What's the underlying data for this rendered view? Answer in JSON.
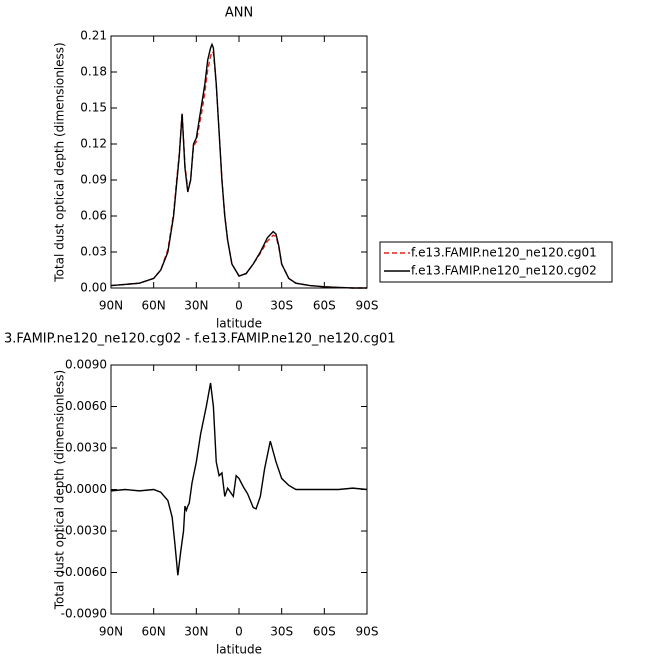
{
  "chart_data": [
    {
      "type": "line",
      "title": "ANN",
      "xlabel": "latitude",
      "ylabel": "Total dust optical depth (dimensionless)",
      "x": [
        90,
        80,
        70,
        60,
        55,
        50,
        46,
        44,
        42,
        40,
        38,
        36,
        34,
        32,
        30,
        28,
        26,
        24,
        22,
        20,
        19,
        18,
        16,
        14,
        12,
        10,
        8,
        5,
        0,
        -5,
        -10,
        -15,
        -20,
        -24,
        -26,
        -28,
        -30,
        -35,
        -40,
        -50,
        -60,
        -70,
        -80,
        -90
      ],
      "series": [
        {
          "name": "f.e13.FAMIP.ne120_ne120.cg01",
          "color": "#e0201b",
          "dashed": true,
          "values": [
            0.002,
            0.003,
            0.004,
            0.008,
            0.015,
            0.032,
            0.062,
            0.088,
            0.112,
            0.146,
            0.102,
            0.082,
            0.09,
            0.118,
            0.122,
            0.135,
            0.148,
            0.163,
            0.182,
            0.193,
            0.197,
            0.196,
            0.17,
            0.13,
            0.09,
            0.06,
            0.04,
            0.02,
            0.01,
            0.012,
            0.02,
            0.029,
            0.039,
            0.044,
            0.043,
            0.034,
            0.02,
            0.008,
            0.004,
            0.002,
            0.001,
            0.0005,
            0,
            0
          ]
        },
        {
          "name": "f.e13.FAMIP.ne120_ne120.cg02",
          "color": "#000000",
          "dashed": false,
          "values": [
            0.002,
            0.003,
            0.004,
            0.008,
            0.015,
            0.03,
            0.06,
            0.085,
            0.11,
            0.145,
            0.1,
            0.08,
            0.09,
            0.12,
            0.125,
            0.14,
            0.155,
            0.17,
            0.19,
            0.2,
            0.203,
            0.2,
            0.17,
            0.13,
            0.09,
            0.06,
            0.04,
            0.02,
            0.01,
            0.012,
            0.02,
            0.03,
            0.042,
            0.047,
            0.045,
            0.035,
            0.02,
            0.008,
            0.004,
            0.002,
            0.001,
            0.0005,
            0,
            0
          ]
        }
      ],
      "xlim": [
        90,
        -90
      ],
      "xticks": [
        {
          "value": 90,
          "label": "90N"
        },
        {
          "value": 60,
          "label": "60N"
        },
        {
          "value": 30,
          "label": "30N"
        },
        0,
        {
          "value": -30,
          "label": "30S"
        },
        {
          "value": -60,
          "label": "60S"
        },
        {
          "value": -90,
          "label": "90S"
        }
      ],
      "ylim": [
        0,
        0.21
      ],
      "yticks": [
        {
          "value": 0,
          "label": "0.00"
        },
        0.03,
        0.06,
        0.09,
        0.12,
        0.15,
        0.18,
        0.21
      ],
      "legend": "right"
    },
    {
      "type": "line",
      "title": "3.FAMIP.ne120_ne120.cg02 - f.e13.FAMIP.ne120_ne120.cg01",
      "xlabel": "latitude",
      "ylabel": "Total dust optical depth (dimensionless)",
      "x": [
        90,
        80,
        70,
        60,
        55,
        50,
        47,
        45,
        43,
        41,
        39,
        38,
        37,
        36,
        35,
        33,
        30,
        27,
        23,
        20,
        18,
        16,
        14,
        12,
        10,
        8,
        6,
        4,
        2,
        0,
        -3,
        -6,
        -10,
        -12,
        -15,
        -18,
        -22,
        -26,
        -30,
        -35,
        -40,
        -50,
        -60,
        -70,
        -80,
        -90
      ],
      "values": [
        -0.0001,
        0,
        -0.0001,
        0,
        -0.0002,
        -0.0008,
        -0.002,
        -0.004,
        -0.0062,
        -0.0045,
        -0.003,
        -0.0012,
        -0.0015,
        -0.0012,
        -0.001,
        0.0005,
        0.002,
        0.004,
        0.006,
        0.0077,
        0.006,
        0.002,
        0.001,
        0.0012,
        -0.0005,
        0.0001,
        -0.0002,
        -0.0005,
        0.001,
        0.0008,
        0.0002,
        -0.0003,
        -0.0013,
        -0.0014,
        -0.0005,
        0.0015,
        0.0035,
        0.002,
        0.0008,
        0.0003,
        0,
        0,
        0,
        0,
        0.0001,
        0
      ],
      "color": "#000000",
      "xlim": [
        90,
        -90
      ],
      "xticks": [
        {
          "value": 90,
          "label": "90N"
        },
        {
          "value": 60,
          "label": "60N"
        },
        {
          "value": 30,
          "label": "30N"
        },
        0,
        {
          "value": -30,
          "label": "30S"
        },
        {
          "value": -60,
          "label": "60S"
        },
        {
          "value": -90,
          "label": "90S"
        }
      ],
      "ylim": [
        -0.009,
        0.009
      ],
      "yticks": [
        {
          "value": -0.009,
          "label": "-0.0090"
        },
        {
          "value": -0.006,
          "label": "-0.0060"
        },
        {
          "value": -0.003,
          "label": "-0.0030"
        },
        {
          "value": 0,
          "label": "0.0000"
        },
        {
          "value": 0.003,
          "label": "0.0030"
        },
        {
          "value": 0.006,
          "label": "0.0060"
        },
        {
          "value": 0.009,
          "label": "0.0090"
        }
      ]
    }
  ]
}
